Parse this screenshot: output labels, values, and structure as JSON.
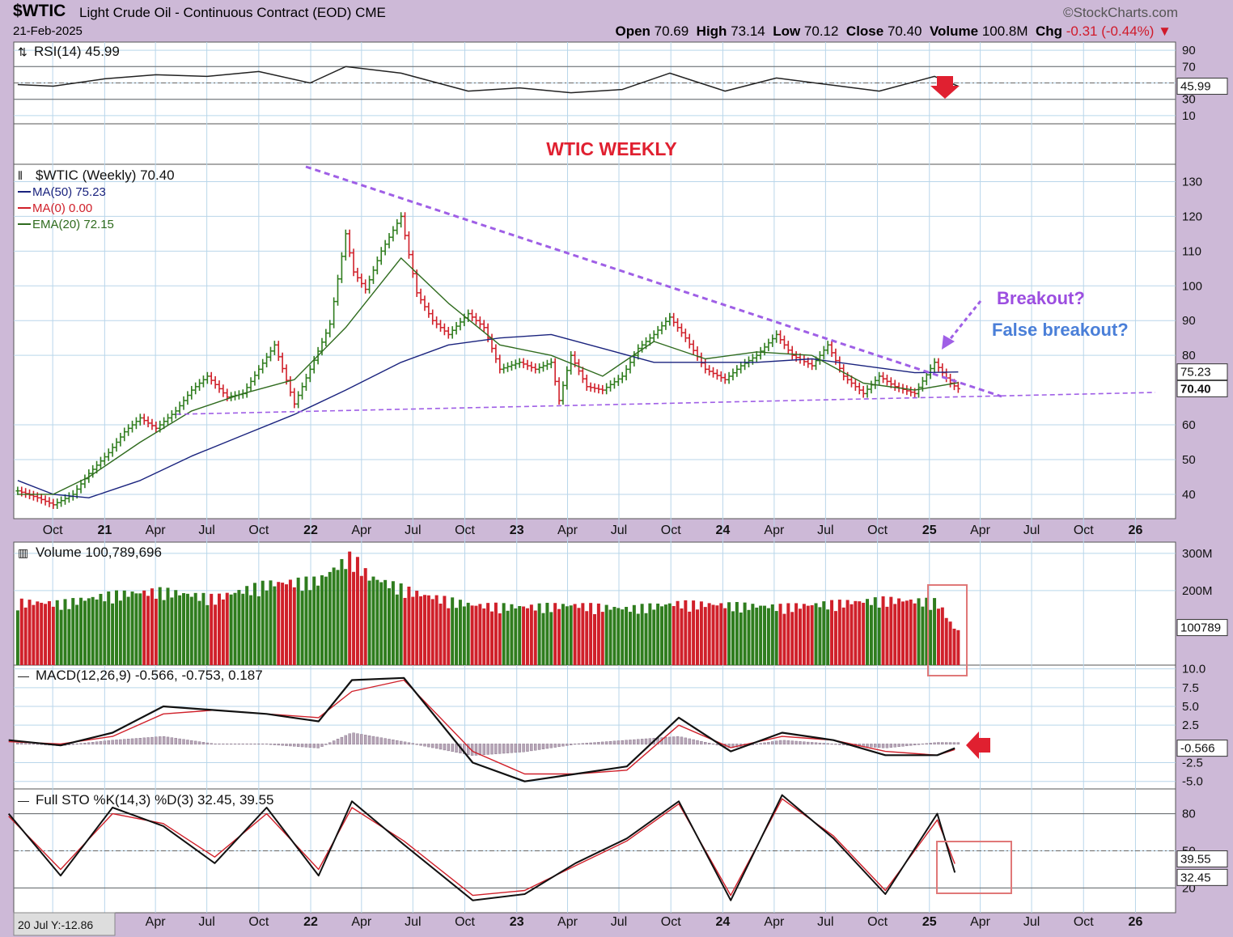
{
  "header": {
    "symbol": "$WTIC",
    "name": "Light Crude Oil - Continuous Contract (EOD)",
    "exchange": "CME",
    "date": "21-Feb-2025",
    "brand": "©StockCharts.com",
    "open_label": "Open",
    "open": "70.69",
    "high_label": "High",
    "high": "73.14",
    "low_label": "Low",
    "low": "70.12",
    "close_label": "Close",
    "close": "70.40",
    "volume_label": "Volume",
    "volume": "100.8M",
    "chg_label": "Chg",
    "chg": "-0.31 (-0.44%)"
  },
  "colors": {
    "background": "#cdb9d7",
    "panel": "#ffffff",
    "up": "#2f7d1e",
    "down": "#d0202a",
    "ma50": "#1a237e",
    "ema20": "#2f6b1e",
    "trendline": "#9f5fe6",
    "annotation_red": "#e02030",
    "annotation_blue": "#4a7fd8",
    "annotation_purple": "#9c4ee0"
  },
  "annotations": {
    "title": "WTIC WEEKLY",
    "breakout": "Breakout?",
    "false_breakout": "False breakout?"
  },
  "chart_data": [
    {
      "type": "line",
      "panel": "rsi",
      "title": "RSI(14) 45.99",
      "ylim": [
        0,
        100
      ],
      "yticks": [
        "90",
        "70",
        "50",
        "30",
        "10"
      ],
      "reference_lines": [
        70,
        50,
        30
      ],
      "last_value_label": "45.99",
      "series": [
        {
          "name": "RSI(14)",
          "x": [
            "2020-07-31",
            "2020-10-02",
            "2021-01-01",
            "2021-04-02",
            "2021-07-02",
            "2021-10-01",
            "2021-12-31",
            "2022-03-04",
            "2022-06-10",
            "2022-10-07",
            "2023-01-06",
            "2023-04-07",
            "2023-07-07",
            "2023-09-29",
            "2024-01-05",
            "2024-04-05",
            "2024-07-05",
            "2024-10-04",
            "2025-01-10",
            "2025-02-21"
          ],
          "values": [
            48,
            46,
            55,
            60,
            58,
            64,
            50,
            70,
            62,
            40,
            44,
            38,
            42,
            62,
            40,
            56,
            48,
            40,
            58,
            46
          ]
        }
      ]
    },
    {
      "type": "line",
      "panel": "price",
      "title": "$WTIC (Weekly) 70.40",
      "legend": [
        {
          "name": "MA(50)",
          "value": "75.23"
        },
        {
          "name": "MA(0)",
          "value": "0.00"
        },
        {
          "name": "EMA(20)",
          "value": "72.15"
        }
      ],
      "ylim": [
        33,
        135
      ],
      "yticks": [
        130,
        120,
        110,
        100,
        90,
        80,
        60,
        50,
        40
      ],
      "last_value_labels": [
        "75.23",
        "70.40"
      ],
      "series": [
        {
          "name": "$WTIC",
          "x": [
            "2020-07-31",
            "2020-09-04",
            "2020-10-02",
            "2020-11-06",
            "2020-12-04",
            "2021-01-08",
            "2021-02-05",
            "2021-03-05",
            "2021-04-02",
            "2021-05-07",
            "2021-06-04",
            "2021-07-02",
            "2021-08-06",
            "2021-09-03",
            "2021-10-01",
            "2021-10-29",
            "2021-12-03",
            "2021-12-31",
            "2022-02-04",
            "2022-03-04",
            "2022-03-18",
            "2022-04-08",
            "2022-05-06",
            "2022-06-10",
            "2022-07-08",
            "2022-08-05",
            "2022-09-02",
            "2022-10-07",
            "2022-11-04",
            "2022-12-02",
            "2023-01-06",
            "2023-02-03",
            "2023-03-03",
            "2023-03-17",
            "2023-04-07",
            "2023-05-05",
            "2023-06-02",
            "2023-07-07",
            "2023-08-04",
            "2023-09-01",
            "2023-09-29",
            "2023-10-27",
            "2023-12-01",
            "2024-01-05",
            "2024-02-02",
            "2024-03-01",
            "2024-04-05",
            "2024-05-03",
            "2024-06-07",
            "2024-07-05",
            "2024-08-02",
            "2024-09-06",
            "2024-10-04",
            "2024-11-01",
            "2024-12-06",
            "2025-01-10",
            "2025-01-24",
            "2025-02-07",
            "2025-02-21"
          ],
          "values": [
            41,
            39,
            37,
            40,
            46,
            52,
            58,
            62,
            59,
            64,
            70,
            74,
            68,
            69,
            76,
            83,
            66,
            76,
            89,
            115,
            104,
            99,
            110,
            120,
            98,
            90,
            86,
            92,
            88,
            76,
            78,
            76,
            78,
            67,
            80,
            71,
            70,
            74,
            82,
            86,
            91,
            85,
            76,
            73,
            77,
            80,
            86,
            80,
            77,
            83,
            74,
            69,
            74,
            71,
            69,
            78,
            75,
            72,
            70.4
          ]
        },
        {
          "name": "MA(50)",
          "x": [
            "2020-07-31",
            "2020-10-02",
            "2020-12-04",
            "2021-03-05",
            "2021-06-04",
            "2021-09-03",
            "2021-12-03",
            "2022-03-04",
            "2022-06-10",
            "2022-09-02",
            "2022-12-02",
            "2023-03-03",
            "2023-06-02",
            "2023-09-01",
            "2023-12-01",
            "2024-03-01",
            "2024-06-07",
            "2024-09-06",
            "2024-12-06",
            "2025-02-21"
          ],
          "values": [
            44,
            40,
            39,
            44,
            51,
            57,
            63,
            70,
            78,
            83,
            85,
            86,
            82,
            78,
            78,
            78,
            79,
            77,
            75,
            75.23
          ]
        },
        {
          "name": "EMA(20)",
          "x": [
            "2020-07-31",
            "2020-10-02",
            "2020-12-04",
            "2021-03-05",
            "2021-06-04",
            "2021-09-03",
            "2021-12-03",
            "2022-03-04",
            "2022-06-10",
            "2022-09-02",
            "2022-12-02",
            "2023-03-03",
            "2023-06-02",
            "2023-09-01",
            "2023-12-01",
            "2024-03-01",
            "2024-06-07",
            "2024-09-06",
            "2024-12-06",
            "2025-02-21"
          ],
          "values": [
            40,
            40,
            45,
            55,
            64,
            69,
            73,
            88,
            108,
            95,
            83,
            80,
            74,
            84,
            79,
            81,
            80,
            72,
            70,
            72.15
          ]
        }
      ]
    },
    {
      "type": "bar",
      "panel": "volume",
      "title": "Volume 100,789,696",
      "ylim": [
        0,
        330
      ],
      "yticks": [
        "300M",
        "200M"
      ],
      "last_value_label": "100789",
      "series": [
        {
          "name": "Volume",
          "x": [
            "2020-07",
            "2020-10",
            "2021-01",
            "2021-04",
            "2021-07",
            "2021-10",
            "2022-01",
            "2022-03",
            "2022-04",
            "2022-07",
            "2022-10",
            "2023-01",
            "2023-04",
            "2023-07",
            "2023-10",
            "2024-01",
            "2024-04",
            "2024-07",
            "2024-10",
            "2025-01",
            "2025-02"
          ],
          "values": [
            180,
            175,
            200,
            210,
            190,
            230,
            240,
            310,
            250,
            200,
            170,
            165,
            170,
            160,
            175,
            170,
            165,
            175,
            185,
            180,
            100.8
          ]
        }
      ]
    },
    {
      "type": "line",
      "panel": "macd",
      "title": "MACD(12,26,9) -0.566, -0.753, 0.187",
      "ylim": [
        -6,
        10.5
      ],
      "yticks": [
        "10.0",
        "7.5",
        "5.0",
        "2.5",
        "-2.5",
        "-5.0"
      ],
      "last_value_label": "-0.566",
      "series": [
        {
          "name": "MACD",
          "x": [
            "2020-07",
            "2020-10",
            "2021-01",
            "2021-04",
            "2021-07",
            "2021-10",
            "2022-01",
            "2022-03",
            "2022-06",
            "2022-10",
            "2023-01",
            "2023-04",
            "2023-07",
            "2023-10",
            "2024-01",
            "2024-04",
            "2024-07",
            "2024-10",
            "2025-01",
            "2025-02"
          ],
          "values": [
            0.5,
            -0.2,
            1.5,
            5,
            4.5,
            4,
            3,
            8.5,
            8.8,
            -2.5,
            -5,
            -4,
            -3,
            3.5,
            -1,
            1.5,
            0.5,
            -1.5,
            -1.5,
            -0.566
          ]
        },
        {
          "name": "Signal",
          "x": [
            "2020-07",
            "2020-10",
            "2021-01",
            "2021-04",
            "2021-07",
            "2021-10",
            "2022-01",
            "2022-03",
            "2022-06",
            "2022-10",
            "2023-01",
            "2023-04",
            "2023-07",
            "2023-10",
            "2024-01",
            "2024-04",
            "2024-07",
            "2024-10",
            "2025-01",
            "2025-02"
          ],
          "values": [
            0.3,
            0,
            1,
            4,
            4.5,
            4,
            3.5,
            7,
            8.5,
            -1,
            -4,
            -4,
            -3.5,
            2.5,
            -0.5,
            1,
            0.5,
            -1,
            -1.5,
            -0.753
          ]
        },
        {
          "name": "Histogram",
          "x": [
            "2020-07",
            "2020-10",
            "2021-01",
            "2021-04",
            "2021-07",
            "2021-10",
            "2022-01",
            "2022-03",
            "2022-06",
            "2022-10",
            "2023-01",
            "2023-04",
            "2023-07",
            "2023-10",
            "2024-01",
            "2024-04",
            "2024-07",
            "2024-10",
            "2025-01",
            "2025-02"
          ],
          "values": [
            0.2,
            -0.2,
            0.5,
            1,
            0,
            0,
            -0.5,
            1.5,
            0.3,
            -1.5,
            -1,
            0,
            0.5,
            1,
            -0.5,
            0.5,
            0,
            -0.5,
            0.2,
            0.187
          ]
        }
      ]
    },
    {
      "type": "line",
      "panel": "stochastic",
      "title": "Full STO %K(14,3) %D(3) 32.45, 39.55",
      "ylim": [
        0,
        100
      ],
      "yticks": [
        "80",
        "50",
        "20"
      ],
      "last_value_labels": [
        "39.55",
        "32.45"
      ],
      "series": [
        {
          "name": "%K",
          "x": [
            "2020-07",
            "2020-10",
            "2021-01",
            "2021-04",
            "2021-07",
            "2021-10",
            "2022-01",
            "2022-03",
            "2022-06",
            "2022-10",
            "2023-01",
            "2023-04",
            "2023-07",
            "2023-10",
            "2024-01",
            "2024-04",
            "2024-07",
            "2024-10",
            "2025-01",
            "2025-02"
          ],
          "values": [
            80,
            30,
            85,
            70,
            40,
            85,
            30,
            90,
            55,
            10,
            15,
            40,
            60,
            90,
            10,
            95,
            60,
            15,
            80,
            32.45
          ]
        },
        {
          "name": "%D",
          "x": [
            "2020-07",
            "2020-10",
            "2021-01",
            "2021-04",
            "2021-07",
            "2021-10",
            "2022-01",
            "2022-03",
            "2022-06",
            "2022-10",
            "2023-01",
            "2023-04",
            "2023-07",
            "2023-10",
            "2024-01",
            "2024-04",
            "2024-07",
            "2024-10",
            "2025-01",
            "2025-02"
          ],
          "values": [
            78,
            35,
            80,
            72,
            45,
            80,
            35,
            85,
            58,
            14,
            18,
            38,
            58,
            88,
            14,
            92,
            62,
            18,
            75,
            39.55
          ]
        }
      ]
    }
  ],
  "time_axis": {
    "labels": [
      {
        "label": "Oct",
        "date": "2020-10-01"
      },
      {
        "label": "21",
        "date": "2021-01-01",
        "year": true
      },
      {
        "label": "Apr",
        "date": "2021-04-01"
      },
      {
        "label": "Jul",
        "date": "2021-07-01"
      },
      {
        "label": "Oct",
        "date": "2021-10-01"
      },
      {
        "label": "22",
        "date": "2022-01-01",
        "year": true
      },
      {
        "label": "Apr",
        "date": "2022-04-01"
      },
      {
        "label": "Jul",
        "date": "2022-07-01"
      },
      {
        "label": "Oct",
        "date": "2022-10-01"
      },
      {
        "label": "23",
        "date": "2023-01-01",
        "year": true
      },
      {
        "label": "Apr",
        "date": "2023-04-01"
      },
      {
        "label": "Jul",
        "date": "2023-07-01"
      },
      {
        "label": "Oct",
        "date": "2023-10-01"
      },
      {
        "label": "24",
        "date": "2024-01-01",
        "year": true
      },
      {
        "label": "Apr",
        "date": "2024-04-01"
      },
      {
        "label": "Jul",
        "date": "2024-07-01"
      },
      {
        "label": "Oct",
        "date": "2024-10-01"
      },
      {
        "label": "25",
        "date": "2025-01-01",
        "year": true
      },
      {
        "label": "Apr",
        "date": "2025-04-01"
      },
      {
        "label": "Jul",
        "date": "2025-07-01"
      },
      {
        "label": "Oct",
        "date": "2025-10-01"
      },
      {
        "label": "26",
        "date": "2026-01-01",
        "year": true
      }
    ],
    "range": [
      "2020-07-24",
      "2026-03-13"
    ],
    "footer_label": "20 Jul Y:-12.86"
  }
}
